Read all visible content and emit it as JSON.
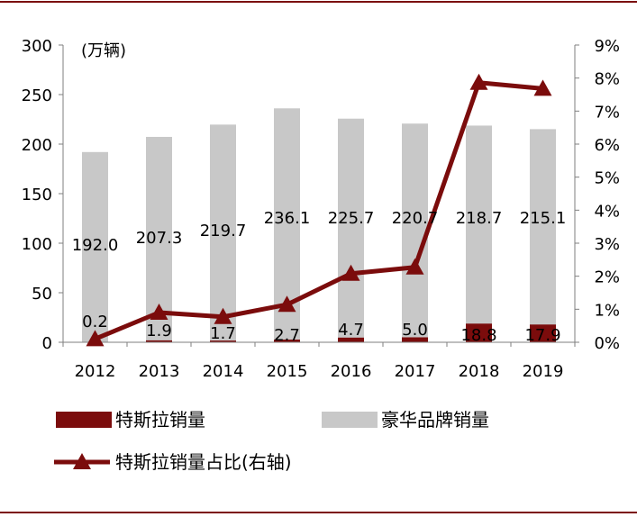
{
  "chart_data": {
    "type": "bar",
    "unit_label": "(万辆)",
    "categories": [
      "2012",
      "2013",
      "2014",
      "2015",
      "2016",
      "2017",
      "2018",
      "2019"
    ],
    "series": [
      {
        "name": "特斯拉销量",
        "kind": "bar",
        "color": "#7b0c0c",
        "values": [
          0.2,
          1.9,
          1.7,
          2.7,
          4.7,
          5.0,
          18.8,
          17.9
        ],
        "labels": [
          "0.2",
          "1.9",
          "1.7",
          "2.7",
          "4.7",
          "5.0",
          "18.8",
          "17.9"
        ]
      },
      {
        "name": "豪华品牌销量",
        "kind": "bar",
        "color": "#c8c8c8",
        "values": [
          192.0,
          207.3,
          219.7,
          236.1,
          225.7,
          220.7,
          218.7,
          215.1
        ],
        "labels": [
          "192.0",
          "207.3",
          "219.7",
          "236.1",
          "225.7",
          "220.7",
          "218.7",
          "215.1"
        ]
      },
      {
        "name": "特斯拉销量占比(右轴)",
        "kind": "line",
        "axis": "right",
        "color": "#7b0c0c",
        "values": [
          0.001,
          0.009,
          0.0077,
          0.0114,
          0.0208,
          0.0227,
          0.0786,
          0.0768
        ]
      }
    ],
    "y_left": {
      "min": 0,
      "max": 300,
      "ticks": [
        "0",
        "50",
        "100",
        "150",
        "200",
        "250",
        "300"
      ]
    },
    "y_right": {
      "min": 0,
      "max": 0.09,
      "ticks": [
        "0%",
        "1%",
        "2%",
        "3%",
        "4%",
        "5%",
        "6%",
        "7%",
        "8%",
        "9%"
      ]
    },
    "grid": false,
    "legend_position": "bottom"
  }
}
